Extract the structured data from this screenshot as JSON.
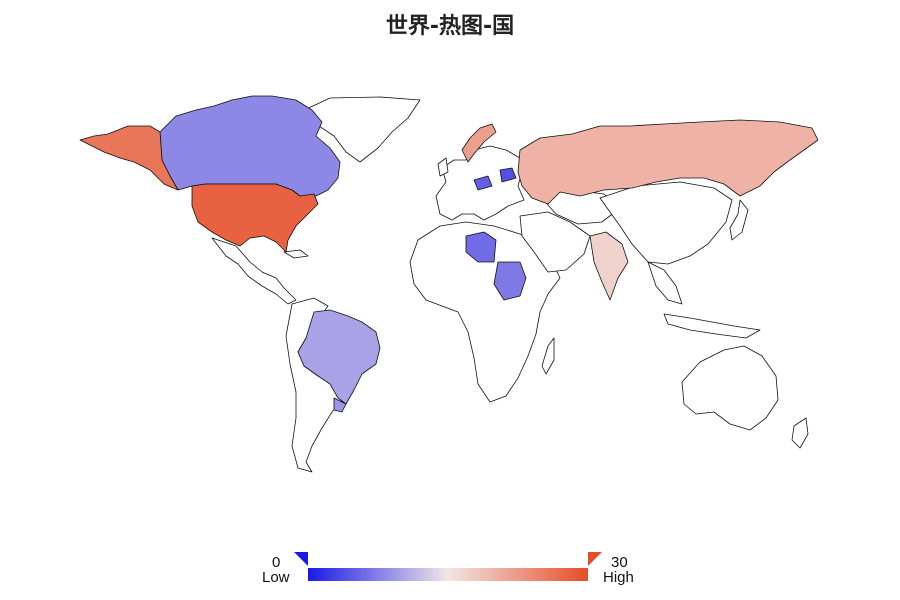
{
  "title": "世界-热图-国",
  "chart_data": {
    "type": "choropleth",
    "title": "世界-热图-国",
    "scale": {
      "min": 0,
      "max": 30,
      "min_label": "0",
      "max_label": "30",
      "low_label": "Low",
      "high_label": "High",
      "colors": [
        "#1a1ae6",
        "#f2e6e6",
        "#e64d26"
      ]
    },
    "regions": [
      {
        "name": "Canada",
        "value": 8
      },
      {
        "name": "Alaska (USA)",
        "value": 26
      },
      {
        "name": "United States",
        "value": 28
      },
      {
        "name": "Brazil",
        "value": 10
      },
      {
        "name": "Uruguay",
        "value": 9
      },
      {
        "name": "Russia",
        "value": 20
      },
      {
        "name": "Norway",
        "value": 22
      },
      {
        "name": "Poland",
        "value": 5
      },
      {
        "name": "Belarus",
        "value": 4
      },
      {
        "name": "Libya",
        "value": 6
      },
      {
        "name": "Sudan",
        "value": 7
      },
      {
        "name": "India",
        "value": 17
      }
    ]
  }
}
